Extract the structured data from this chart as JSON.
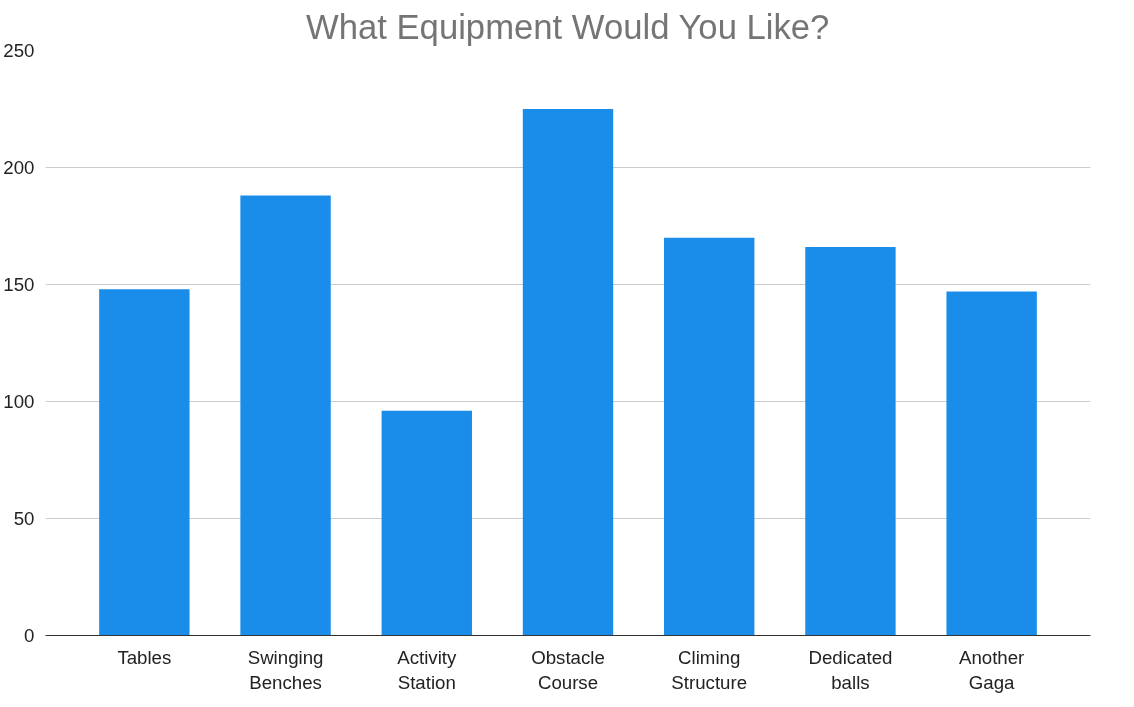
{
  "chart_data": {
    "type": "bar",
    "title": "What Equipment Would You Like?",
    "categories": [
      "Tables",
      "Swinging Benches",
      "Activity Station",
      "Obstacle Course",
      "Climing Structure",
      "Dedicated balls",
      "Another Gaga"
    ],
    "values": [
      148,
      188,
      96,
      225,
      170,
      166,
      147
    ],
    "color": "#1a8cea",
    "ylim": [
      0,
      250
    ],
    "yticks": [
      0,
      50,
      100,
      150,
      200,
      250
    ],
    "grid": "y"
  }
}
